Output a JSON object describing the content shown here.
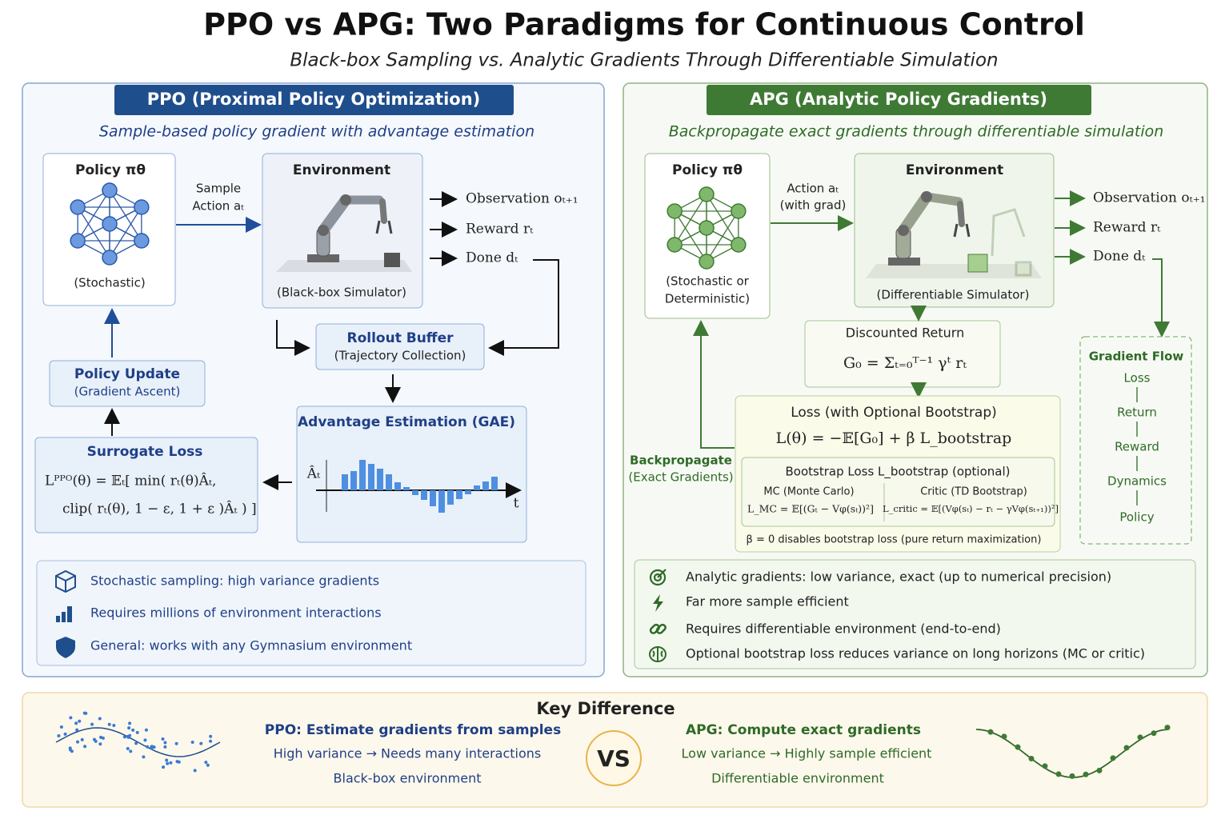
{
  "header": {
    "title": "PPO vs APG: Two Paradigms for Continuous Control",
    "subtitle": "Black-box Sampling vs. Analytic Gradients Through Differentiable Simulation"
  },
  "ppo": {
    "title": "PPO (Proximal Policy Optimization)",
    "subtitle": "Sample-based policy gradient with advantage estimation",
    "policy": {
      "title": "Policy πθ",
      "note": "(Stochastic)"
    },
    "action_label": [
      "Sample",
      "Action aₜ"
    ],
    "environment": {
      "title": "Environment",
      "note": "(Black-box Simulator)"
    },
    "outputs": [
      "Observation oₜ₊₁",
      "Reward rₜ",
      "Done dₜ"
    ],
    "rollout": {
      "title": "Rollout Buffer",
      "note": "(Trajectory Collection)"
    },
    "advantage": {
      "title": "Advantage Estimation (GAE)",
      "y_label": "Âₜ",
      "x_label": "t"
    },
    "surrogate": {
      "title": "Surrogate Loss",
      "formula": [
        "Lᴾᴾᴼ(θ) = 𝔼ₜ[ min( rₜ(θ)Âₜ,",
        "clip( rₜ(θ), 1 − ε, 1 + ε )Âₜ ) ]"
      ]
    },
    "update": {
      "title": "Policy Update",
      "note": "(Gradient Ascent)"
    },
    "notes": [
      "Stochastic sampling: high variance gradients",
      "Requires millions of environment interactions",
      "General: works with any Gymnasium environment"
    ]
  },
  "apg": {
    "title": "APG (Analytic Policy Gradients)",
    "subtitle": "Backpropagate exact gradients through differentiable simulation",
    "policy": {
      "title": "Policy πθ",
      "note": [
        "(Stochastic or",
        "Deterministic)"
      ]
    },
    "action_label": [
      "Action aₜ",
      "(with grad)"
    ],
    "environment": {
      "title": "Environment",
      "note": "(Differentiable Simulator)"
    },
    "outputs": [
      "Observation oₜ₊₁",
      "Reward rₜ",
      "Done dₜ"
    ],
    "return": {
      "title": "Discounted Return",
      "formula": "G₀ = Σₜ₌₀ᵀ⁻¹ γᵗ rₜ"
    },
    "loss": {
      "title": "Loss (with Optional Bootstrap)",
      "formula": "L(θ) = −𝔼[G₀] + β L_bootstrap"
    },
    "bootstrap": {
      "title": "Bootstrap Loss L_bootstrap   (optional)",
      "mc": {
        "label": "MC (Monte Carlo)",
        "formula": "L_MC = 𝔼[(Gₜ − Vφ(sₜ))²]"
      },
      "critic": {
        "label": "Critic (TD Bootstrap)",
        "formula": "L_critic = 𝔼[(Vφ(sₜ) − rₜ − γVφ(sₜ₊₁))²]"
      },
      "note": "β = 0 disables bootstrap loss (pure return maximization)"
    },
    "backprop": [
      "Backpropagate",
      "(Exact Gradients)"
    ],
    "gradient_flow": {
      "title": "Gradient Flow",
      "steps": [
        "Loss",
        "Return",
        "Reward",
        "Dynamics",
        "Policy"
      ]
    },
    "notes": [
      "Analytic gradients: low variance, exact (up to numerical precision)",
      "Far more sample efficient",
      "Requires differentiable environment (end-to-end)",
      "Optional bootstrap loss reduces variance on long horizons (MC or critic)"
    ]
  },
  "key": {
    "title": "Key Difference",
    "ppo": {
      "title": "PPO: Estimate gradients from samples",
      "lines": [
        "High variance  →  Needs many interactions",
        "Black-box environment"
      ]
    },
    "vs": "VS",
    "apg": {
      "title": "APG:  Compute exact gradients",
      "lines": [
        "Low variance  →  Highly sample efficient",
        "Differentiable environment"
      ]
    }
  }
}
